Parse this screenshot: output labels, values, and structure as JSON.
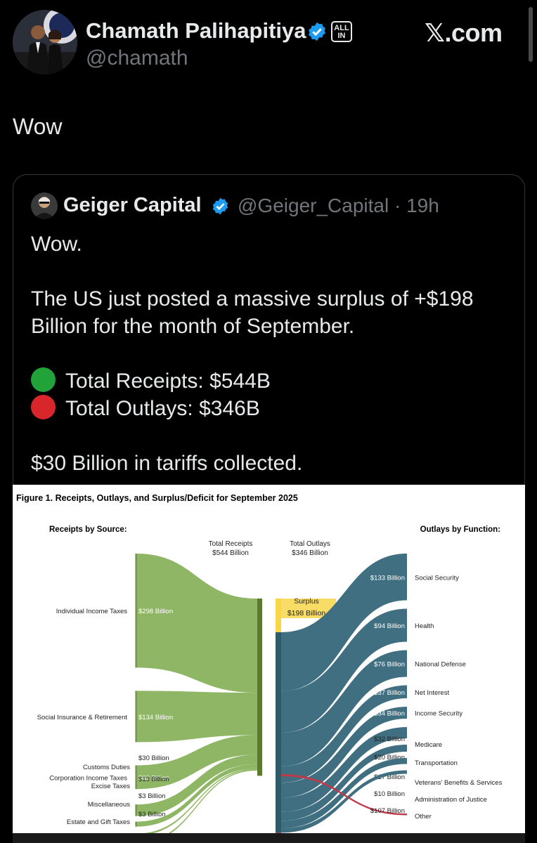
{
  "post": {
    "author_name": "Chamath Palihapitiya",
    "author_handle": "@chamath",
    "badge": [
      "ALL",
      "IN"
    ],
    "brand": "𝕏.com",
    "text": "Wow"
  },
  "quoted": {
    "author_name": "Geiger Capital",
    "handle_time": "@Geiger_Capital · 19h",
    "line1": "Wow.",
    "line2a": "The US just posted a massive surplus of +$198",
    "line2b": "Billion for the month of September.",
    "receipts": "Total Receipts: $544B",
    "outlays": "Total Outlays: $346B",
    "line4": "$30 Billion in tariffs collected."
  },
  "colors": {
    "receipts_green": "#22a33a",
    "outlays_red": "#d8262a",
    "sankey_green": "#8fb665",
    "sankey_green_dark": "#5b7a2e",
    "sankey_teal": "#3f6f80",
    "surplus_yellow": "#f7d64a",
    "other_red": "#c0394a"
  },
  "chart_data": {
    "type": "sankey",
    "title": "Figure 1. Receipts, Outlays, and Surplus/Deficit for September 2025",
    "left_heading": "Receipts by Source:",
    "right_heading": "Outlays by Function:",
    "total_receipts_label": [
      "Total Receipts",
      "$544 Billion"
    ],
    "total_outlays_label": [
      "Total Outlays",
      "$346 Billion"
    ],
    "surplus_label": [
      "Surplus",
      "$198 Billion"
    ],
    "receipts": [
      {
        "name": "Individual Income Taxes",
        "label": "$298 Billion",
        "value": 298
      },
      {
        "name": "Social Insurance & Retirement",
        "label": "$134 Billion",
        "value": 134
      },
      {
        "name": "Corporation Income Taxes",
        "label": "$62 Billion",
        "value": 62
      },
      {
        "name": "Customs Duties",
        "label": "$30 Billion",
        "value": 30
      },
      {
        "name": "Excise Taxes",
        "label": "$13 Billion",
        "value": 13
      },
      {
        "name": "Miscellaneous",
        "label": "$3 Billion",
        "value": 3
      },
      {
        "name": "Estate and Gift Taxes",
        "label": "$3 Billion",
        "value": 3
      }
    ],
    "outlays": [
      {
        "name": "Social Security",
        "label": "$133 Billion",
        "value": 133
      },
      {
        "name": "Health",
        "label": "$94 Billion",
        "value": 94
      },
      {
        "name": "National Defense",
        "label": "$76 Billion",
        "value": 76
      },
      {
        "name": "Net Interest",
        "label": "$37 Billion",
        "value": 37
      },
      {
        "name": "Income Security",
        "label": "$34 Billion",
        "value": 34
      },
      {
        "name": "Medicare",
        "label": "$32 Billion",
        "value": 32
      },
      {
        "name": "Transportation",
        "label": "$20 Billion",
        "value": 20
      },
      {
        "name": "Veterans' Benefits & Services",
        "label": "$17 Billion",
        "value": 17
      },
      {
        "name": "Administration of Justice",
        "label": "$10 Billion",
        "value": 10
      },
      {
        "name": "Other",
        "label": "$107 Billion",
        "value": -107
      }
    ]
  }
}
